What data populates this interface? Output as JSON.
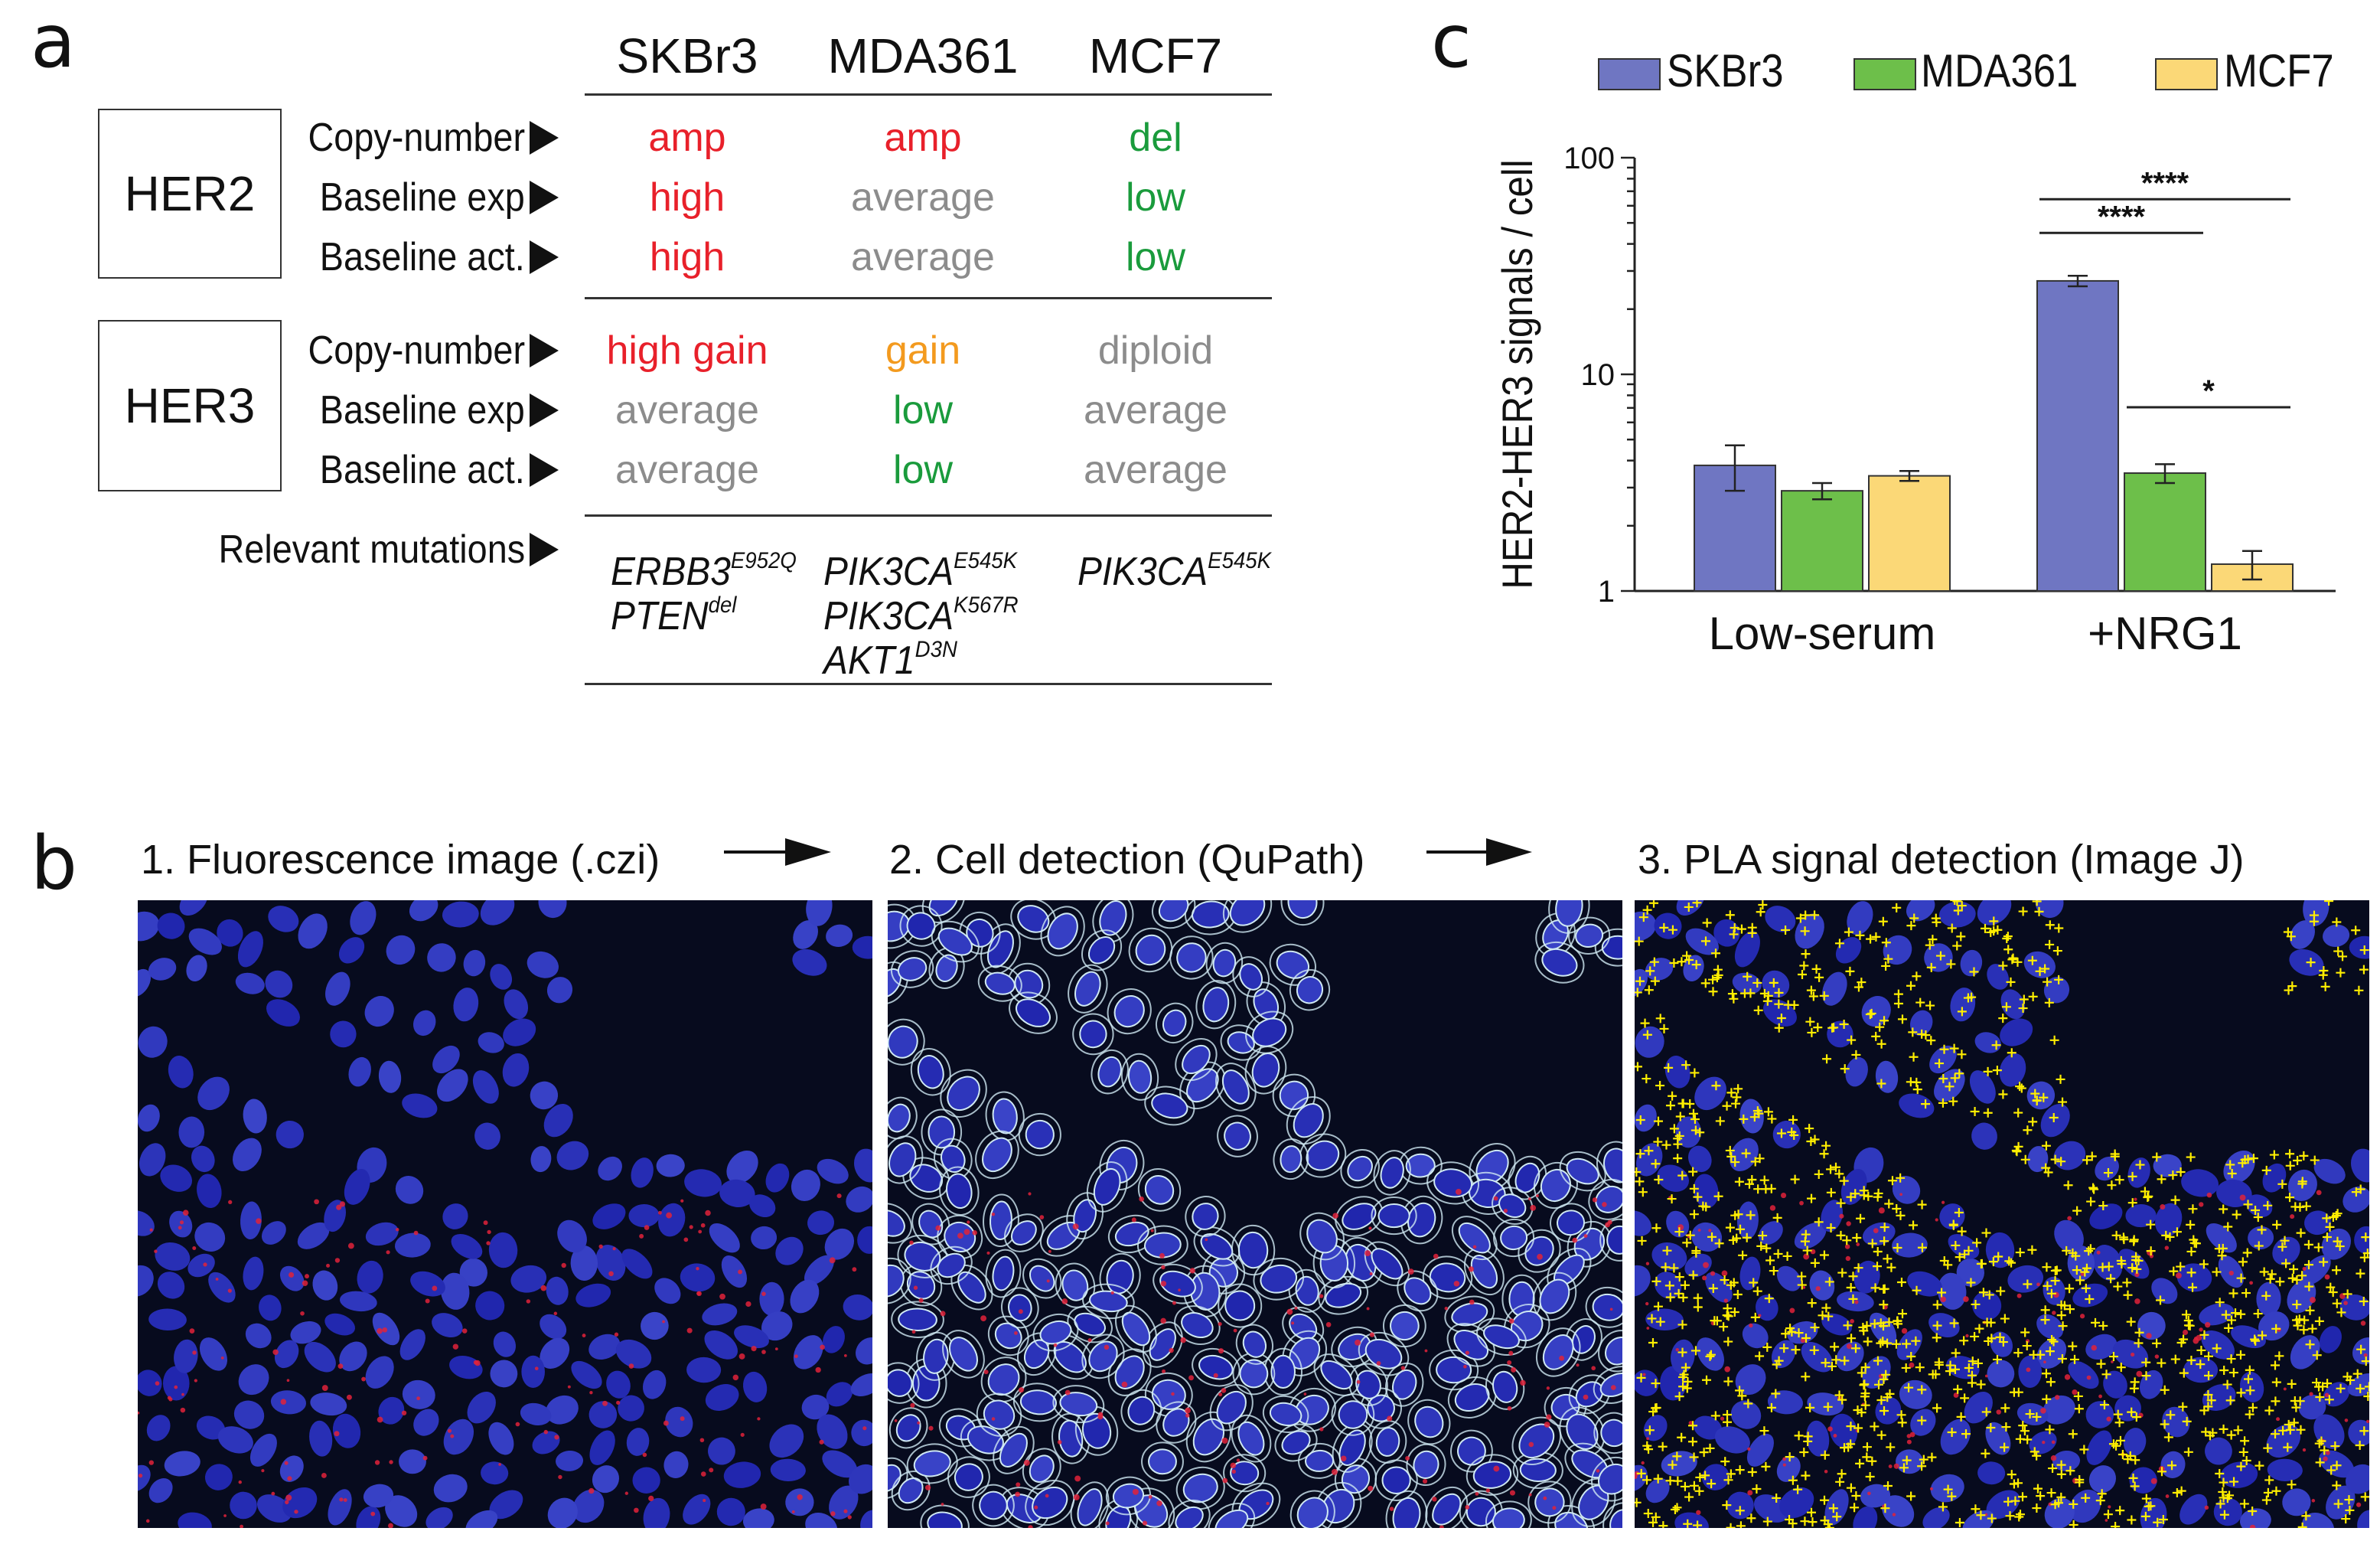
{
  "panel_a": {
    "letter": "a",
    "columns": [
      "SKBr3",
      "MDA361",
      "MCF7"
    ],
    "groups": [
      {
        "name": "HER2",
        "rows": [
          {
            "label": "Copy-number",
            "values": [
              {
                "text": "amp",
                "color": "#e8202a"
              },
              {
                "text": "amp",
                "color": "#e8202a"
              },
              {
                "text": "del",
                "color": "#1a9b3c"
              }
            ]
          },
          {
            "label": "Baseline exp",
            "values": [
              {
                "text": "high",
                "color": "#e8202a"
              },
              {
                "text": "average",
                "color": "#8c8c8c"
              },
              {
                "text": "low",
                "color": "#1a9b3c"
              }
            ]
          },
          {
            "label": "Baseline act.",
            "values": [
              {
                "text": "high",
                "color": "#e8202a"
              },
              {
                "text": "average",
                "color": "#8c8c8c"
              },
              {
                "text": "low",
                "color": "#1a9b3c"
              }
            ]
          }
        ]
      },
      {
        "name": "HER3",
        "rows": [
          {
            "label": "Copy-number",
            "values": [
              {
                "text": "high gain",
                "color": "#e8202a"
              },
              {
                "text": "gain",
                "color": "#f39a1e"
              },
              {
                "text": "diploid",
                "color": "#8c8c8c"
              }
            ]
          },
          {
            "label": "Baseline exp",
            "values": [
              {
                "text": "average",
                "color": "#8c8c8c"
              },
              {
                "text": "low",
                "color": "#1a9b3c"
              },
              {
                "text": "average",
                "color": "#8c8c8c"
              }
            ]
          },
          {
            "label": "Baseline act.",
            "values": [
              {
                "text": "average",
                "color": "#8c8c8c"
              },
              {
                "text": "low",
                "color": "#1a9b3c"
              },
              {
                "text": "average",
                "color": "#8c8c8c"
              }
            ]
          }
        ]
      }
    ],
    "mutations_label": "Relevant mutations",
    "mutations": [
      [
        {
          "gene": "ERBB3",
          "variant": "E952Q"
        },
        {
          "gene": "PTEN",
          "variant": "del"
        }
      ],
      [
        {
          "gene": "PIK3CA",
          "variant": "E545K"
        },
        {
          "gene": "PIK3CA",
          "variant": "K567R"
        },
        {
          "gene": "AKT1",
          "variant": "D3N"
        }
      ],
      [
        {
          "gene": "PIK3CA",
          "variant": "E545K"
        }
      ]
    ]
  },
  "panel_b": {
    "letter": "b",
    "steps": [
      "1. Fluorescence image (.czi)",
      "2. Cell detection (QuPath)",
      "3. PLA signal detection (Image J)"
    ],
    "colors": {
      "background": "#070b1e",
      "nuclei": "#3a44c8",
      "pla_signal": "#e0223a",
      "cell_outline": "#cfe8f2",
      "detection_marker": "#ffee00"
    }
  },
  "panel_c": {
    "letter": "c",
    "chart_data": {
      "type": "bar",
      "ylabel": "HER2-HER3 signals / cell",
      "yscale": "log",
      "ylim": [
        1,
        100
      ],
      "yticks": [
        "1",
        "10",
        "100"
      ],
      "categories": [
        "Low-serum",
        "+NRG1"
      ],
      "series": [
        {
          "name": "SKBr3",
          "color": "#6f76c2",
          "values": [
            3.8,
            27
          ],
          "err": [
            0.9,
            1.5
          ]
        },
        {
          "name": "MDA361",
          "color": "#6dbf4a",
          "values": [
            2.9,
            3.5
          ],
          "err": [
            0.25,
            0.35
          ]
        },
        {
          "name": "MCF7",
          "color": "#fbd877",
          "values": [
            3.4,
            1.33
          ],
          "err": [
            0.18,
            0.2
          ]
        }
      ],
      "legend_position": "top",
      "annotations": [
        {
          "text": "****",
          "category": "+NRG1",
          "from": "SKBr3",
          "to": "MCF7"
        },
        {
          "text": "****",
          "category": "+NRG1",
          "from": "SKBr3",
          "to": "MDA361"
        },
        {
          "text": "*",
          "category": "+NRG1",
          "from": "MDA361",
          "to": "MCF7"
        }
      ]
    }
  }
}
